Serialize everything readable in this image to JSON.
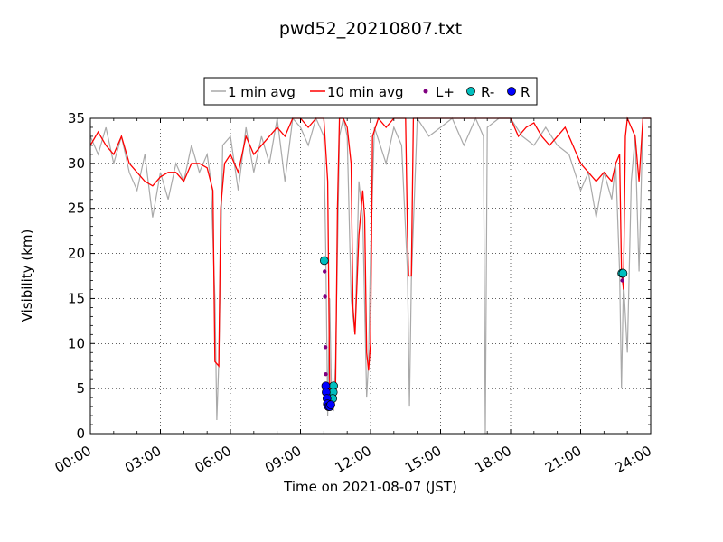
{
  "chart_data": {
    "type": "line",
    "title": "pwd52_20210807.txt",
    "xlabel": "Time on 2021-08-07 (JST)",
    "ylabel": "Visibility (km)",
    "xlim": [
      "00:00",
      "24:00"
    ],
    "ylim": [
      0,
      35
    ],
    "grid": true,
    "legend_placement": "top-center",
    "x_ticks": [
      "00:00",
      "03:00",
      "06:00",
      "09:00",
      "12:00",
      "15:00",
      "18:00",
      "21:00",
      "24:00"
    ],
    "y_ticks": [
      0,
      5,
      10,
      15,
      20,
      25,
      30,
      35
    ],
    "colors": {
      "one_min": "#a9a9a9",
      "ten_min": "#ff0000",
      "l_plus": "#800080",
      "r_minus": "#00bfbf",
      "r": "#0000ff"
    },
    "series": [
      {
        "name": "1 min avg",
        "style": "line",
        "color": "#a9a9a9",
        "points": [
          [
            "00:00",
            33
          ],
          [
            "00:20",
            31
          ],
          [
            "00:40",
            34
          ],
          [
            "01:00",
            30
          ],
          [
            "01:20",
            33
          ],
          [
            "01:40",
            29
          ],
          [
            "02:00",
            27
          ],
          [
            "02:20",
            31
          ],
          [
            "02:40",
            24
          ],
          [
            "03:00",
            29
          ],
          [
            "03:20",
            26
          ],
          [
            "03:40",
            30
          ],
          [
            "04:00",
            28
          ],
          [
            "04:20",
            32
          ],
          [
            "04:40",
            29
          ],
          [
            "05:00",
            31
          ],
          [
            "05:10",
            28
          ],
          [
            "05:20",
            15
          ],
          [
            "05:25",
            1.5
          ],
          [
            "05:30",
            8
          ],
          [
            "05:40",
            32
          ],
          [
            "06:00",
            33
          ],
          [
            "06:20",
            27
          ],
          [
            "06:40",
            34
          ],
          [
            "07:00",
            29
          ],
          [
            "07:20",
            33
          ],
          [
            "07:40",
            30
          ],
          [
            "08:00",
            35
          ],
          [
            "08:20",
            28
          ],
          [
            "08:40",
            35
          ],
          [
            "09:00",
            34
          ],
          [
            "09:20",
            32
          ],
          [
            "09:40",
            35
          ],
          [
            "10:00",
            33
          ],
          [
            "10:05",
            20
          ],
          [
            "10:10",
            2
          ],
          [
            "10:15",
            15
          ],
          [
            "10:20",
            4
          ],
          [
            "10:25",
            2.5
          ],
          [
            "10:30",
            8
          ],
          [
            "10:40",
            33
          ],
          [
            "10:50",
            35
          ],
          [
            "11:00",
            33
          ],
          [
            "11:10",
            15
          ],
          [
            "11:20",
            11
          ],
          [
            "11:30",
            28
          ],
          [
            "11:40",
            24
          ],
          [
            "11:50",
            4
          ],
          [
            "11:55",
            8
          ],
          [
            "12:00",
            20
          ],
          [
            "12:10",
            34
          ],
          [
            "12:40",
            30
          ],
          [
            "13:00",
            34
          ],
          [
            "13:20",
            32
          ],
          [
            "13:35",
            18
          ],
          [
            "13:40",
            3
          ],
          [
            "13:45",
            17
          ],
          [
            "14:00",
            35
          ],
          [
            "14:30",
            33
          ],
          [
            "15:00",
            34
          ],
          [
            "15:30",
            35
          ],
          [
            "16:00",
            32
          ],
          [
            "16:30",
            35
          ],
          [
            "16:50",
            33
          ],
          [
            "16:55",
            0
          ],
          [
            "17:00",
            34
          ],
          [
            "17:30",
            35
          ],
          [
            "18:00",
            35
          ],
          [
            "18:30",
            33
          ],
          [
            "19:00",
            32
          ],
          [
            "19:30",
            34
          ],
          [
            "20:00",
            32
          ],
          [
            "20:30",
            31
          ],
          [
            "21:00",
            27
          ],
          [
            "21:20",
            29
          ],
          [
            "21:40",
            24
          ],
          [
            "22:00",
            29
          ],
          [
            "22:20",
            26
          ],
          [
            "22:30",
            30
          ],
          [
            "22:40",
            18
          ],
          [
            "22:45",
            5
          ],
          [
            "22:50",
            17
          ],
          [
            "23:00",
            9
          ],
          [
            "23:10",
            28
          ],
          [
            "23:20",
            33
          ],
          [
            "23:30",
            18
          ],
          [
            "23:40",
            35
          ],
          [
            "24:00",
            35
          ]
        ]
      },
      {
        "name": "10 min avg",
        "style": "line",
        "color": "#ff0000",
        "points": [
          [
            "00:00",
            32
          ],
          [
            "00:20",
            33.5
          ],
          [
            "00:40",
            32
          ],
          [
            "01:00",
            31
          ],
          [
            "01:20",
            33
          ],
          [
            "01:40",
            30
          ],
          [
            "02:00",
            29
          ],
          [
            "02:20",
            28
          ],
          [
            "02:40",
            27.5
          ],
          [
            "03:00",
            28.5
          ],
          [
            "03:20",
            29
          ],
          [
            "03:40",
            29
          ],
          [
            "04:00",
            28
          ],
          [
            "04:20",
            30
          ],
          [
            "04:40",
            30
          ],
          [
            "05:00",
            29.5
          ],
          [
            "05:15",
            27
          ],
          [
            "05:20",
            8
          ],
          [
            "05:30",
            7.5
          ],
          [
            "05:35",
            25
          ],
          [
            "05:45",
            30
          ],
          [
            "06:00",
            31
          ],
          [
            "06:20",
            29
          ],
          [
            "06:40",
            33
          ],
          [
            "07:00",
            31
          ],
          [
            "07:20",
            32
          ],
          [
            "07:40",
            33
          ],
          [
            "08:00",
            34
          ],
          [
            "08:20",
            33
          ],
          [
            "08:40",
            35
          ],
          [
            "09:00",
            35
          ],
          [
            "09:20",
            34
          ],
          [
            "09:40",
            35
          ],
          [
            "10:00",
            35
          ],
          [
            "10:10",
            28
          ],
          [
            "10:15",
            5
          ],
          [
            "10:20",
            4
          ],
          [
            "10:25",
            3
          ],
          [
            "10:30",
            5
          ],
          [
            "10:35",
            25
          ],
          [
            "10:40",
            35
          ],
          [
            "10:50",
            35
          ],
          [
            "11:00",
            34
          ],
          [
            "11:10",
            30
          ],
          [
            "11:15",
            14
          ],
          [
            "11:20",
            11
          ],
          [
            "11:30",
            22
          ],
          [
            "11:40",
            27
          ],
          [
            "11:45",
            24
          ],
          [
            "11:50",
            9
          ],
          [
            "11:55",
            7
          ],
          [
            "12:00",
            10
          ],
          [
            "12:05",
            33
          ],
          [
            "12:20",
            35
          ],
          [
            "12:40",
            34
          ],
          [
            "13:00",
            35
          ],
          [
            "13:30",
            35
          ],
          [
            "13:35",
            22
          ],
          [
            "13:38",
            17.5
          ],
          [
            "13:45",
            17.5
          ],
          [
            "13:50",
            35
          ],
          [
            "14:20",
            35
          ],
          [
            "15:00",
            35
          ],
          [
            "15:30",
            35
          ],
          [
            "16:00",
            35
          ],
          [
            "16:30",
            35
          ],
          [
            "17:00",
            35
          ],
          [
            "17:30",
            35
          ],
          [
            "18:00",
            35
          ],
          [
            "18:20",
            33
          ],
          [
            "18:40",
            34
          ],
          [
            "19:00",
            34.5
          ],
          [
            "19:20",
            33
          ],
          [
            "19:40",
            32
          ],
          [
            "20:00",
            33
          ],
          [
            "20:20",
            34
          ],
          [
            "20:40",
            32
          ],
          [
            "21:00",
            30
          ],
          [
            "21:20",
            29
          ],
          [
            "21:40",
            28
          ],
          [
            "22:00",
            29
          ],
          [
            "22:20",
            28
          ],
          [
            "22:30",
            30
          ],
          [
            "22:40",
            31
          ],
          [
            "22:45",
            18
          ],
          [
            "22:50",
            16
          ],
          [
            "22:55",
            33
          ],
          [
            "23:00",
            35
          ],
          [
            "23:10",
            34
          ],
          [
            "23:20",
            33
          ],
          [
            "23:30",
            28
          ],
          [
            "23:40",
            35
          ],
          [
            "24:00",
            35
          ]
        ]
      },
      {
        "name": "L+",
        "style": "points",
        "color": "#800080",
        "points": [
          [
            "10:02",
            18
          ],
          [
            "10:03",
            15.2
          ],
          [
            "10:04",
            9.6
          ],
          [
            "10:05",
            6.6
          ],
          [
            "22:47",
            17
          ],
          [
            "22:48",
            17.5
          ]
        ]
      },
      {
        "name": "R-",
        "style": "points",
        "color": "#00bfbf",
        "points": [
          [
            "10:01",
            19.2
          ],
          [
            "10:25",
            5.3
          ],
          [
            "10:24",
            4.6
          ],
          [
            "10:23",
            3.9
          ],
          [
            "22:46",
            17.8
          ],
          [
            "22:49",
            17.8
          ]
        ]
      },
      {
        "name": "R",
        "style": "points",
        "color": "#0000ff",
        "points": [
          [
            "10:05",
            5.3
          ],
          [
            "10:06",
            4.6
          ],
          [
            "10:08",
            3.9
          ],
          [
            "10:09",
            3.3
          ],
          [
            "10:12",
            3.0
          ],
          [
            "10:15",
            3.0
          ],
          [
            "10:18",
            3.2
          ]
        ]
      }
    ]
  }
}
